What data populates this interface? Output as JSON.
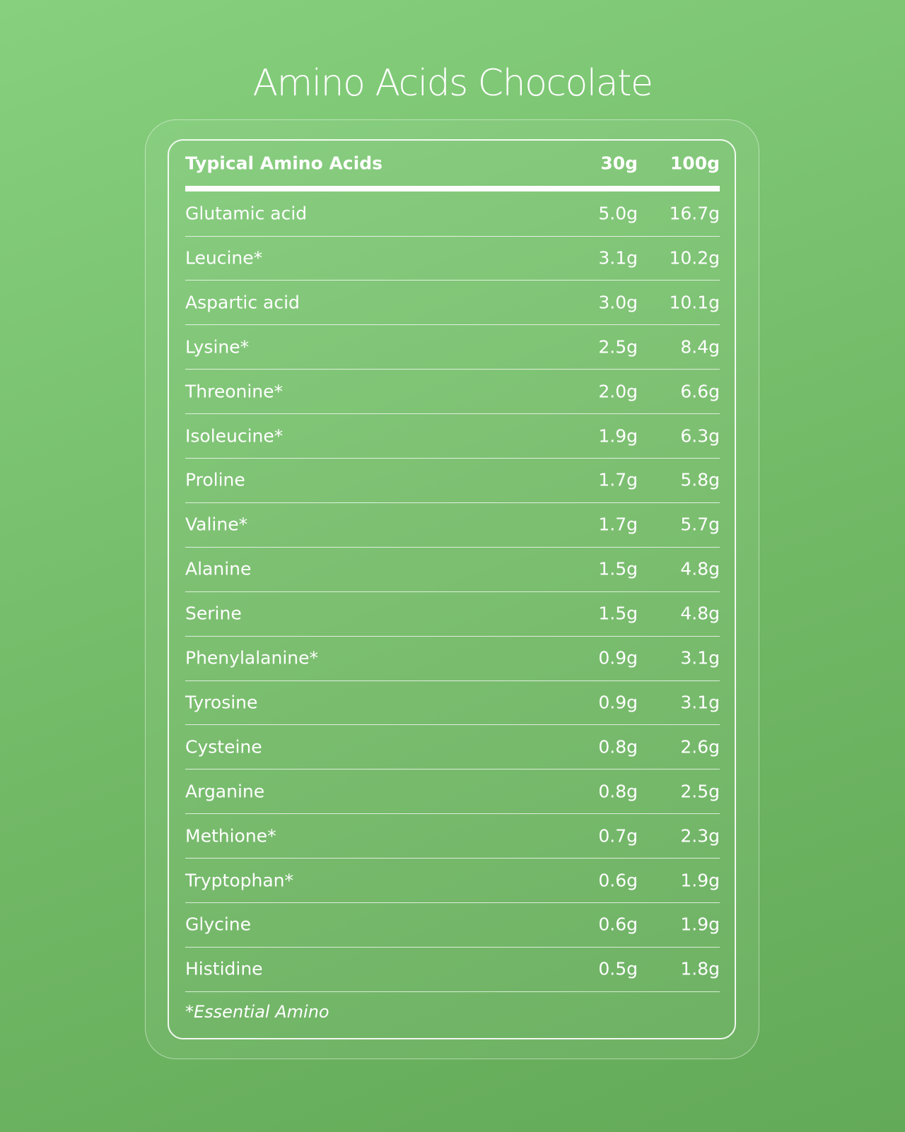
{
  "title": "Amino Acids Chocolate",
  "table": {
    "header": [
      "Typical Amino Acids",
      "30g",
      "100g"
    ],
    "rows": [
      [
        "Glutamic acid",
        "5.0g",
        "16.7g"
      ],
      [
        "Leucine*",
        "3.1g",
        "10.2g"
      ],
      [
        "Aspartic acid",
        "3.0g",
        "10.1g"
      ],
      [
        "Lysine*",
        "2.5g",
        "8.4g"
      ],
      [
        "Threonine*",
        "2.0g",
        "6.6g"
      ],
      [
        "Isoleucine*",
        "1.9g",
        "6.3g"
      ],
      [
        "Proline",
        "1.7g",
        "5.8g"
      ],
      [
        "Valine*",
        "1.7g",
        "5.7g"
      ],
      [
        "Alanine",
        "1.5g",
        "4.8g"
      ],
      [
        "Serine",
        "1.5g",
        "4.8g"
      ],
      [
        "Phenylalanine*",
        "0.9g",
        "3.1g"
      ],
      [
        "Tyrosine",
        "0.9g",
        "3.1g"
      ],
      [
        "Cysteine",
        "0.8g",
        "2.6g"
      ],
      [
        "Arganine",
        "0.8g",
        "2.5g"
      ],
      [
        "Methione*",
        "0.7g",
        "2.3g"
      ],
      [
        "Tryptophan*",
        "0.6g",
        "1.9g"
      ],
      [
        "Glycine",
        "0.6g",
        "1.9g"
      ],
      [
        "Histidine",
        "0.5g",
        "1.8g"
      ]
    ],
    "footnote": "*Essential Amino"
  }
}
